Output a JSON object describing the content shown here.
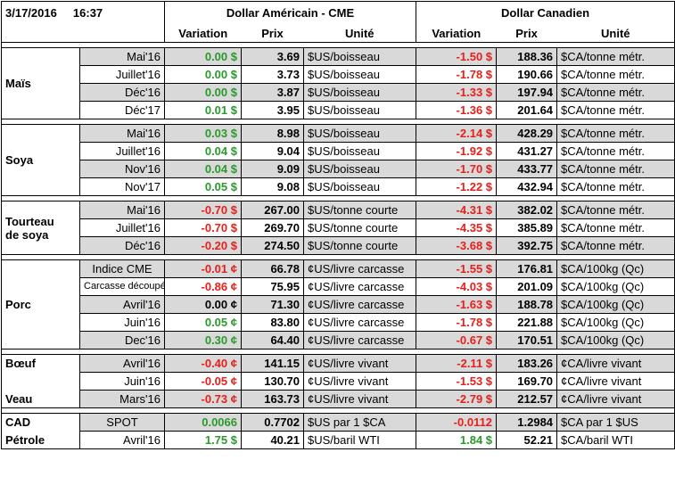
{
  "header": {
    "date": "3/17/2016",
    "time": "16:37",
    "usd_title": "Dollar Américain - CME",
    "cad_title": "Dollar Canadien",
    "col_variation": "Variation",
    "col_prix": "Prix",
    "col_unite": "Unité"
  },
  "groups": [
    {
      "label": "Maïs",
      "rows": [
        {
          "period": "Mai'16",
          "us_var": "0.00 $",
          "us_var_class": "pos",
          "us_price": "3.69",
          "us_unit": "$US/boisseau",
          "ca_var": "-1.50 $",
          "ca_var_class": "neg",
          "ca_price": "188.36",
          "ca_unit": "$CA/tonne métr."
        },
        {
          "period": "Juillet'16",
          "us_var": "0.00 $",
          "us_var_class": "pos",
          "us_price": "3.73",
          "us_unit": "$US/boisseau",
          "ca_var": "-1.78 $",
          "ca_var_class": "neg",
          "ca_price": "190.66",
          "ca_unit": "$CA/tonne métr."
        },
        {
          "period": "Déc'16",
          "us_var": "0.00 $",
          "us_var_class": "pos",
          "us_price": "3.87",
          "us_unit": "$US/boisseau",
          "ca_var": "-1.33 $",
          "ca_var_class": "neg",
          "ca_price": "197.94",
          "ca_unit": "$CA/tonne métr."
        },
        {
          "period": "Déc'17",
          "us_var": "0.01 $",
          "us_var_class": "pos",
          "us_price": "3.95",
          "us_unit": "$US/boisseau",
          "ca_var": "-1.36 $",
          "ca_var_class": "neg",
          "ca_price": "201.64",
          "ca_unit": "$CA/tonne métr."
        }
      ]
    },
    {
      "label": "Soya",
      "rows": [
        {
          "period": "Mai'16",
          "us_var": "0.03 $",
          "us_var_class": "pos",
          "us_price": "8.98",
          "us_unit": "$US/boisseau",
          "ca_var": "-2.14 $",
          "ca_var_class": "neg",
          "ca_price": "428.29",
          "ca_unit": "$CA/tonne métr."
        },
        {
          "period": "Juillet'16",
          "us_var": "0.04 $",
          "us_var_class": "pos",
          "us_price": "9.04",
          "us_unit": "$US/boisseau",
          "ca_var": "-1.92 $",
          "ca_var_class": "neg",
          "ca_price": "431.27",
          "ca_unit": "$CA/tonne métr."
        },
        {
          "period": "Nov'16",
          "us_var": "0.04 $",
          "us_var_class": "pos",
          "us_price": "9.09",
          "us_unit": "$US/boisseau",
          "ca_var": "-1.70 $",
          "ca_var_class": "neg",
          "ca_price": "433.77",
          "ca_unit": "$CA/tonne métr."
        },
        {
          "period": "Nov'17",
          "us_var": "0.05 $",
          "us_var_class": "pos",
          "us_price": "9.08",
          "us_unit": "$US/boisseau",
          "ca_var": "-1.22 $",
          "ca_var_class": "neg",
          "ca_price": "432.94",
          "ca_unit": "$CA/tonne métr."
        }
      ]
    },
    {
      "label": "Tourteau de soya",
      "label_lines": [
        "Tourteau",
        "de soya"
      ],
      "rows": [
        {
          "period": "Mai'16",
          "us_var": "-0.70 $",
          "us_var_class": "neg",
          "us_price": "267.00",
          "us_unit": "$US/tonne courte",
          "ca_var": "-4.31 $",
          "ca_var_class": "neg",
          "ca_price": "382.02",
          "ca_unit": "$CA/tonne métr."
        },
        {
          "period": "Juillet'16",
          "us_var": "-0.70 $",
          "us_var_class": "neg",
          "us_price": "269.70",
          "us_unit": "$US/tonne courte",
          "ca_var": "-4.35 $",
          "ca_var_class": "neg",
          "ca_price": "385.89",
          "ca_unit": "$CA/tonne métr."
        },
        {
          "period": "Déc'16",
          "us_var": "-0.20 $",
          "us_var_class": "neg",
          "us_price": "274.50",
          "us_unit": "$US/tonne courte",
          "ca_var": "-3.68 $",
          "ca_var_class": "neg",
          "ca_price": "392.75",
          "ca_unit": "$CA/tonne métr."
        }
      ]
    },
    {
      "label": "Porc",
      "rows": [
        {
          "period": "Indice CME",
          "us_var": "-0.01 ¢",
          "us_var_class": "neg",
          "us_price": "66.78",
          "us_unit": "¢US/livre carcasse",
          "ca_var": "-1.55 $",
          "ca_var_class": "neg",
          "ca_price": "176.81",
          "ca_unit": "$CA/100kg (Qc)",
          "period_align": "center"
        },
        {
          "period": "Carcasse découpée",
          "us_var": "-0.86 ¢",
          "us_var_class": "neg",
          "us_price": "75.95",
          "us_unit": "¢US/livre carcasse",
          "ca_var": "-4.03 $",
          "ca_var_class": "neg",
          "ca_price": "201.09",
          "ca_unit": "$CA/100kg (Qc)",
          "period_align": "right",
          "period_small": true
        },
        {
          "period": "Avril'16",
          "us_var": "0.00 ¢",
          "us_var_class": "neu",
          "us_price": "71.30",
          "us_unit": "¢US/livre carcasse",
          "ca_var": "-1.63 $",
          "ca_var_class": "neg",
          "ca_price": "188.78",
          "ca_unit": "$CA/100kg (Qc)"
        },
        {
          "period": "Juin'16",
          "us_var": "0.05 ¢",
          "us_var_class": "pos",
          "us_price": "83.80",
          "us_unit": "¢US/livre carcasse",
          "ca_var": "-1.78 $",
          "ca_var_class": "neg",
          "ca_price": "221.88",
          "ca_unit": "$CA/100kg (Qc)"
        },
        {
          "period": "Dec'16",
          "us_var": "0.30 ¢",
          "us_var_class": "pos",
          "us_price": "64.40",
          "us_unit": "¢US/livre carcasse",
          "ca_var": "-0.67 $",
          "ca_var_class": "neg",
          "ca_price": "170.51",
          "ca_unit": "$CA/100kg (Qc)"
        }
      ]
    },
    {
      "label": "Bœuf / Veau",
      "rows": [
        {
          "label": "Bœuf",
          "period": "Avril'16",
          "us_var": "-0.40 ¢",
          "us_var_class": "neg",
          "us_price": "141.15",
          "us_unit": "¢US/livre vivant",
          "ca_var": "-2.11 $",
          "ca_var_class": "neg",
          "ca_price": "183.26",
          "ca_unit": "¢CA/livre vivant"
        },
        {
          "label": "",
          "period": "Juin'16",
          "us_var": "-0.05 ¢",
          "us_var_class": "neg",
          "us_price": "130.70",
          "us_unit": "¢US/livre vivant",
          "ca_var": "-1.53 $",
          "ca_var_class": "neg",
          "ca_price": "169.70",
          "ca_unit": "¢CA/livre vivant"
        },
        {
          "label": "Veau",
          "period": "Mars'16",
          "us_var": "-0.73 ¢",
          "us_var_class": "neg",
          "us_price": "163.73",
          "us_unit": "¢US/livre vivant",
          "ca_var": "-2.79 $",
          "ca_var_class": "neg",
          "ca_price": "212.57",
          "ca_unit": "¢CA/livre vivant"
        }
      ]
    },
    {
      "label": "CAD / Pétrole",
      "rows": [
        {
          "label": "CAD",
          "period": "SPOT",
          "us_var": "0.0066",
          "us_var_class": "pos",
          "us_price": "0.7702",
          "us_unit": "$US par 1 $CA",
          "ca_var": "-0.0112",
          "ca_var_class": "neg",
          "ca_price": "1.2984",
          "ca_unit": "$CA par 1 $US",
          "period_align": "center"
        },
        {
          "label": "Pétrole",
          "period": "Avril'16",
          "us_var": "1.75 $",
          "us_var_class": "pos",
          "us_price": "40.21",
          "us_unit": "$US/baril WTI",
          "ca_var": "1.84 $",
          "ca_var_class": "pos",
          "ca_price": "52.21",
          "ca_unit": "$CA/baril WTI"
        }
      ]
    }
  ],
  "colors": {
    "positive": "#2a9a2a",
    "negative": "#e8201b",
    "shade": "#d9d9d9"
  }
}
